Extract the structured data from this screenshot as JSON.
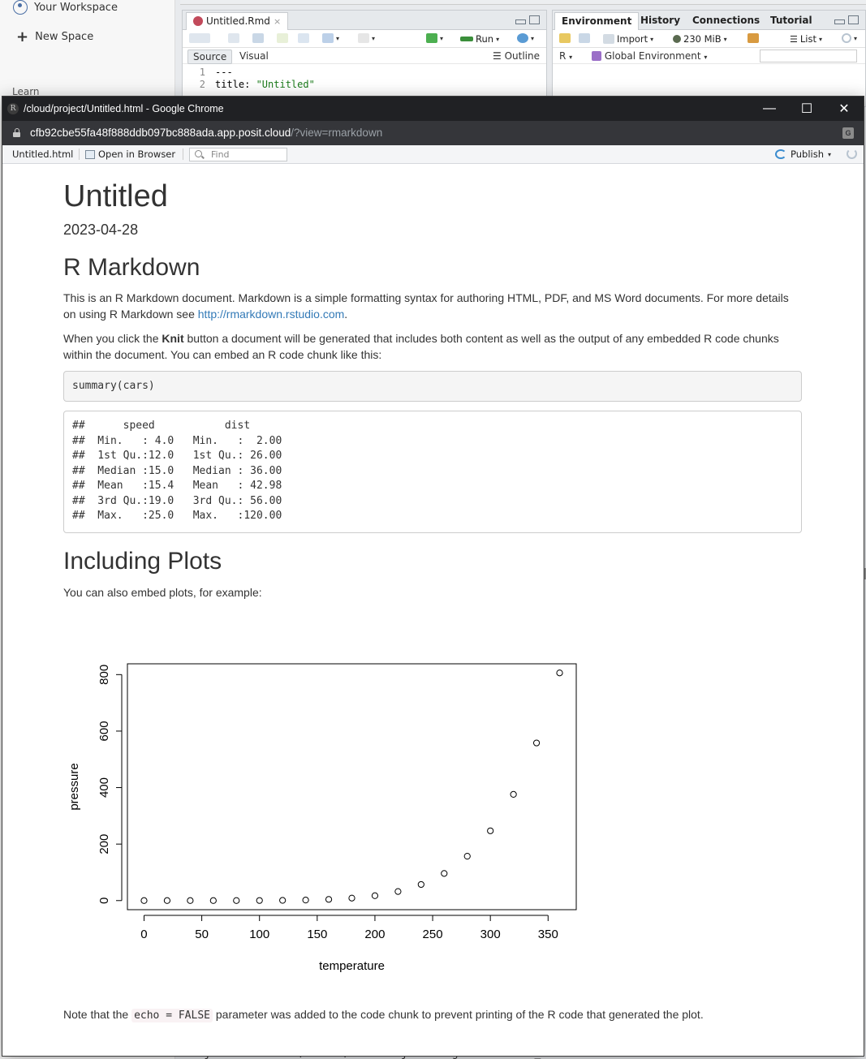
{
  "rstudio": {
    "sidebar": {
      "workspace_label": "Your Workspace",
      "new_space_label": "New Space",
      "learn_label": "Learn"
    },
    "source_pane": {
      "tab_label": "Untitled.Rmd",
      "tab_close": "×",
      "run_label": "Run",
      "source_label": "Source",
      "visual_label": "Visual",
      "outline_label": "Outline",
      "code_lines": [
        {
          "num": "1",
          "text": "---"
        },
        {
          "num": "2",
          "text_key": "title: ",
          "text_val": "\"Untitled\""
        }
      ]
    },
    "env_pane": {
      "tabs": [
        "Environment",
        "History",
        "Connections",
        "Tutorial"
      ],
      "import_label": "Import",
      "memory_label": "230 MiB",
      "list_label": "List",
      "lang_label": "R",
      "scope_label": "Global Environment"
    },
    "bottom_peek": "athjax.rstudio.com/latest/MathJax.js?config=TeX-AMS-MML_H"
  },
  "chrome": {
    "window_title": "/cloud/project/Untitled.html - Google Chrome",
    "app_icon_letter": "R",
    "url_host": "cfb92cbe55fa48f888ddb097bc888ada.app.posit.cloud",
    "url_path": "/?view=rmarkdown",
    "controls": {
      "minimize": "—",
      "maximize": "☐",
      "close": "✕"
    }
  },
  "viewer_bar": {
    "file_label": "Untitled.html",
    "open_browser_label": "Open in Browser",
    "find_placeholder": "Find",
    "publish_label": "Publish"
  },
  "document": {
    "title": "Untitled",
    "date": "2023-04-28",
    "section1_heading": "R Markdown",
    "para1_pre": "This is an R Markdown document. Markdown is a simple formatting syntax for authoring HTML, PDF, and MS Word documents. For more details on using R Markdown see ",
    "para1_link": "http://rmarkdown.rstudio.com",
    "para1_post": ".",
    "para2_pre": "When you click the ",
    "para2_bold": "Knit",
    "para2_post": " button a document will be generated that includes both content as well as the output of any embedded R code chunks within the document. You can embed an R code chunk like this:",
    "code_chunk": "summary(cars)",
    "output_lines": [
      "##      speed           dist       ",
      "##  Min.   : 4.0   Min.   :  2.00  ",
      "##  1st Qu.:12.0   1st Qu.: 26.00  ",
      "##  Median :15.0   Median : 36.00  ",
      "##  Mean   :15.4   Mean   : 42.98  ",
      "##  3rd Qu.:19.0   3rd Qu.: 56.00  ",
      "##  Max.   :25.0   Max.   :120.00  "
    ],
    "section2_heading": "Including Plots",
    "para3": "You can also embed plots, for example:",
    "para4_pre": "Note that the ",
    "para4_code": "echo = FALSE",
    "para4_post": " parameter was added to the code chunk to prevent printing of the R code that generated the plot."
  },
  "chart_data": {
    "type": "scatter",
    "xlabel": "temperature",
    "ylabel": "pressure",
    "xlim": [
      0,
      360
    ],
    "ylim": [
      0,
      806
    ],
    "xticks": [
      0,
      50,
      100,
      150,
      200,
      250,
      300,
      350
    ],
    "yticks": [
      0,
      200,
      400,
      600,
      800
    ],
    "marker": "open-circle",
    "x": [
      0,
      20,
      40,
      60,
      80,
      100,
      120,
      140,
      160,
      180,
      200,
      220,
      240,
      260,
      280,
      300,
      320,
      340,
      360
    ],
    "y": [
      0.0002,
      0.0012,
      0.006,
      0.03,
      0.09,
      0.27,
      0.75,
      1.85,
      4.2,
      8.8,
      17.3,
      32.1,
      57.0,
      96.0,
      157.0,
      247.0,
      376.0,
      558.0,
      806.0
    ]
  }
}
